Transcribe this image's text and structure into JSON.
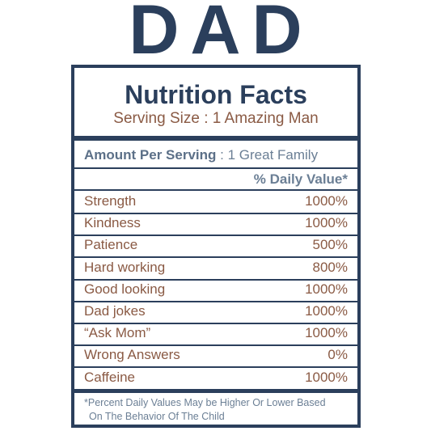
{
  "title": "DAD",
  "label": {
    "heading": "Nutrition Facts",
    "serving_size": "Serving Size : 1 Amazing Man",
    "amount_label": "Amount Per Serving",
    "amount_value": ": 1 Great Family",
    "daily_value_header": "% Daily Value*",
    "rows": [
      [
        "Strength",
        "1000%"
      ],
      [
        "Kindness",
        "1000%"
      ],
      [
        "Patience",
        "500%"
      ],
      [
        "Hard working",
        "800%"
      ],
      [
        "Good looking",
        "1000%"
      ],
      [
        "Dad jokes",
        "1000%"
      ],
      [
        "“Ask Mom”",
        "1000%"
      ],
      [
        "Wrong Answers",
        "0%"
      ],
      [
        "Caffeine",
        "1000%"
      ]
    ],
    "footnote_1": "*Percent Daily Values May be Higher Or Lower Based",
    "footnote_2": "On The Behavior Of The Child"
  }
}
